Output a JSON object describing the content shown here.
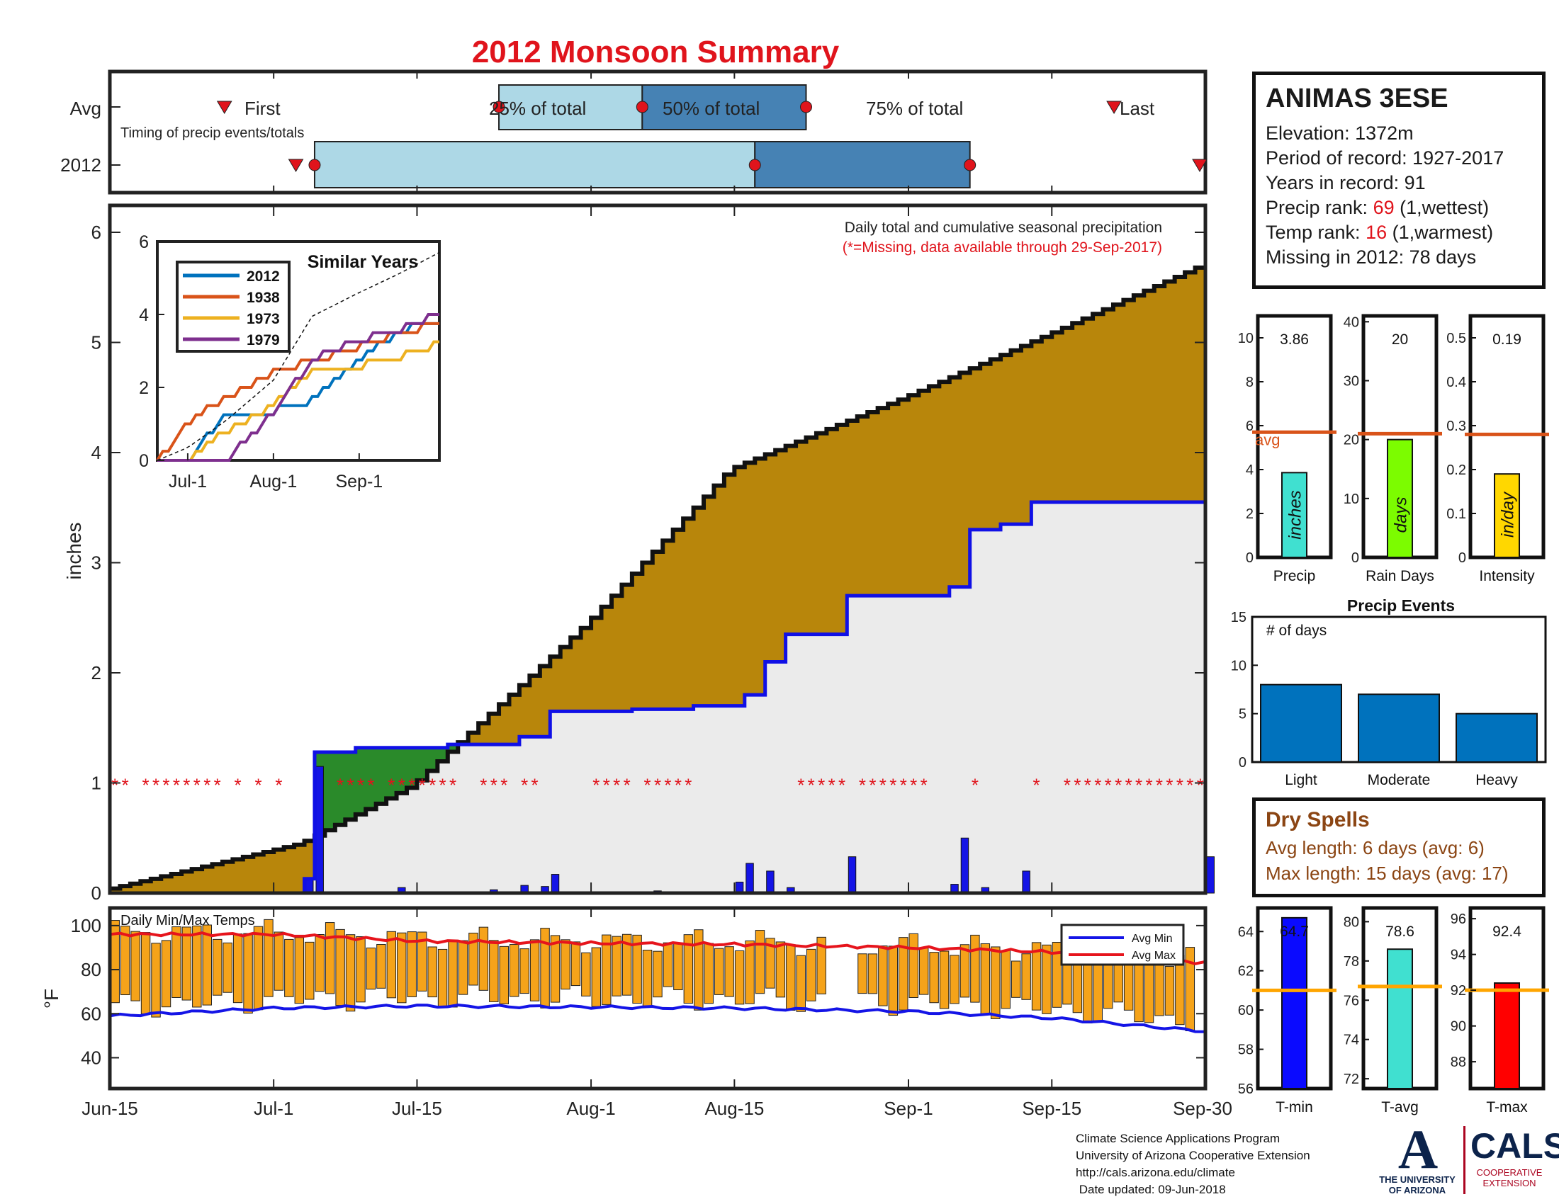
{
  "title": "2012 Monsoon Summary",
  "colors": {
    "title": "#e0141c",
    "cumulative_avg_fill": "#b8860b",
    "season_2012_fill": "#ebebeb",
    "ahead_fill": "#2a8a2a",
    "line_2012": "#1010e6",
    "daily_bar": "#1414e6",
    "missing": "#e0141c",
    "temp_bar": "#f5a31a",
    "avg_min": "#1414e6",
    "avg_max": "#e6141c"
  },
  "timing": {
    "avg_label": "Avg",
    "year_label": "2012",
    "subtitle": "Timing of precip events/totals",
    "first_label": "First",
    "last_label": "Last",
    "p25_label": "25% of total",
    "p50_label": "50% of total",
    "p75_label": "75% of total",
    "avg": {
      "first": "2012-06-30",
      "p25": "2012-07-23",
      "p50": "2012-08-06",
      "p75": "2012-08-22",
      "last": "2012-09-19"
    },
    "y2012": {
      "first": "2012-07-04",
      "p25": "2012-07-05",
      "p50": "2012-08-17",
      "p75": "2012-09-07",
      "last": "2012-09-30"
    }
  },
  "main": {
    "ylabel": "inches",
    "caption": "Daily total and cumulative seasonal precipitation",
    "missing_note": "(*=Missing, data available through 29-Sep-2017)",
    "missing_marker": "*",
    "ytick_labels": [
      "0",
      "1",
      "2",
      "3",
      "4",
      "5",
      "6"
    ],
    "xtick_labels": [
      "Jun-15",
      "Jul-1",
      "Jul-15",
      "Aug-1",
      "Aug-15",
      "Sep-1",
      "Sep-15",
      "Sep-30"
    ]
  },
  "inset": {
    "title": "Similar Years",
    "ytick_labels": [
      "0",
      "2",
      "4",
      "6"
    ],
    "xtick_labels": [
      "Jul-1",
      "Aug-1",
      "Sep-1"
    ],
    "legend": [
      "2012",
      "1938",
      "1973",
      "1979"
    ],
    "colors": [
      "#0072bd",
      "#d95319",
      "#edb120",
      "#7e2f8e"
    ]
  },
  "station": {
    "name": "ANIMAS 3ESE",
    "elevation": "Elevation: 1372m",
    "period": "Period of record: 1927-2017",
    "years": "Years in record: 91",
    "precip_rank_label": "Precip rank:",
    "precip_rank": "69",
    "precip_rank_note": "(1,wettest)",
    "temp_rank_label": "Temp rank:",
    "temp_rank": "16",
    "temp_rank_note": "(1,warmest)",
    "missing": "Missing in 2012: 78 days"
  },
  "stats": [
    {
      "name": "Precip",
      "value_text": "3.86",
      "unit": "inches",
      "ticks": [
        "0",
        "2",
        "4",
        "6",
        "8",
        "10"
      ],
      "color": "#40e0d0",
      "avg_label": "avg"
    },
    {
      "name": "Rain Days",
      "value_text": "20",
      "unit": "days",
      "ticks": [
        "0",
        "10",
        "20",
        "30",
        "40"
      ],
      "color": "#7cfc00"
    },
    {
      "name": "Intensity",
      "value_text": "0.19",
      "unit": "in/day",
      "ticks": [
        "0",
        "0.1",
        "0.2",
        "0.3",
        "0.4",
        "0.5"
      ],
      "color": "#ffd700"
    }
  ],
  "events": {
    "title": "Precip Events",
    "ylabel": "# of days",
    "ticks": [
      "0",
      "5",
      "10",
      "15"
    ],
    "categories": [
      "Light",
      "Moderate",
      "Heavy"
    ]
  },
  "dry_spells": {
    "title": "Dry Spells",
    "avg_length": "Avg length: 6 days (avg: 6)",
    "max_length": "Max length: 15 days (avg: 17)"
  },
  "temps": {
    "label": "Daily Min/Max Temps",
    "ylabel": "°F",
    "ticks": [
      "40",
      "60",
      "80",
      "100"
    ],
    "legend_min": "Avg Min",
    "legend_max": "Avg Max"
  },
  "temp_stats": [
    {
      "name": "T-min",
      "value_text": "64.7",
      "ticks": [
        "56",
        "58",
        "60",
        "62",
        "64"
      ],
      "color": "#0a0aff"
    },
    {
      "name": "T-avg",
      "value_text": "78.6",
      "ticks": [
        "72",
        "74",
        "76",
        "78",
        "80"
      ],
      "color": "#40e0d0"
    },
    {
      "name": "T-max",
      "value_text": "92.4",
      "ticks": [
        "88",
        "90",
        "92",
        "94",
        "96"
      ],
      "color": "#ff0000"
    }
  ],
  "credits": {
    "line1": "Climate Science Applications Program",
    "line2": "University of Arizona Cooperative Extension",
    "line3": "http://cals.arizona.edu/climate",
    "line4": " Date updated: 09-Jun-2018"
  },
  "logos": {
    "ua_line1": "THE UNIVERSITY",
    "ua_line2": "OF ARIZONA",
    "cals": "CALS",
    "cals_line1": "COOPERATIVE",
    "cals_line2": "EXTENSION"
  },
  "chart_data": [
    {
      "type": "area",
      "title": "Daily total and cumulative seasonal precipitation",
      "ylabel": "inches",
      "ylim": [
        0,
        6.2
      ],
      "xlim": [
        "2012-06-15",
        "2012-09-30"
      ],
      "series": [
        {
          "name": "",
          "x": [
            "2012-06-15",
            "2012-07-04",
            "2012-07-15",
            "2012-08-01",
            "2012-08-15",
            "2012-09-01",
            "2012-09-15",
            "2012-09-30"
          ],
          "values": [
            0.03,
            0.45,
            0.98,
            2.45,
            3.85,
            4.5,
            5.07,
            5.7
          ]
        },
        {
          "name": "",
          "x": [
            "2012-07-04",
            "2012-07-05",
            "2012-07-09",
            "2012-07-18",
            "2012-07-25",
            "2012-07-28",
            "2012-08-05",
            "2012-08-11",
            "2012-08-16",
            "2012-08-18",
            "2012-08-20",
            "2012-08-26",
            "2012-09-05",
            "2012-09-07",
            "2012-09-10",
            "2012-09-13",
            "2012-09-29",
            "2012-09-30"
          ],
          "values": [
            0.13,
            1.28,
            1.32,
            1.35,
            1.42,
            1.65,
            1.67,
            1.7,
            1.8,
            2.1,
            2.35,
            2.7,
            2.78,
            3.3,
            3.35,
            3.55,
            3.55,
            3.86
          ]
        },
        {
          "name": "",
          "x": [
            "2012-07-04",
            "2012-07-05",
            "2012-07-13",
            "2012-07-22",
            "2012-07-25",
            "2012-07-27",
            "2012-07-28",
            "2012-08-07",
            "2012-08-15",
            "2012-08-16",
            "2012-08-18",
            "2012-08-20",
            "2012-08-26",
            "2012-09-05",
            "2012-09-06",
            "2012-09-08",
            "2012-09-12",
            "2012-09-30"
          ],
          "values": [
            0.13,
            1.15,
            0.05,
            0.03,
            0.07,
            0.06,
            0.17,
            0.02,
            0.1,
            0.27,
            0.2,
            0.05,
            0.33,
            0.08,
            0.5,
            0.05,
            0.2,
            0.33
          ]
        }
      ]
    },
    {
      "type": "line",
      "title": "Similar Years",
      "ylim": [
        0,
        6
      ],
      "x": [
        "2012-06-20",
        "2012-07-01",
        "2012-07-15",
        "2012-08-01",
        "2012-08-15",
        "2012-09-01",
        "2012-09-15",
        "2012-09-30"
      ],
      "series": [
        {
          "name": "2012",
          "values": [
            0,
            0,
            1.3,
            1.35,
            1.65,
            2.7,
            3.55,
            3.86
          ]
        },
        {
          "name": "1938",
          "values": [
            0,
            1.0,
            1.75,
            2.4,
            2.75,
            3.1,
            3.5,
            3.75
          ]
        },
        {
          "name": "1973",
          "values": [
            0,
            0,
            0.8,
            1.5,
            2.5,
            2.6,
            2.85,
            3.2
          ]
        },
        {
          "name": "1979",
          "values": [
            0,
            0,
            0,
            1.35,
            2.75,
            3.3,
            3.55,
            4.0
          ]
        },
        {
          "name": "",
          "values": [
            0,
            0.35,
            1.1,
            2.2,
            3.95,
            4.6,
            5.1,
            5.7
          ]
        }
      ]
    },
    {
      "type": "bar",
      "categories": [
        "Precip",
        "Rain Days",
        "Intensity"
      ],
      "values": [
        3.86,
        20,
        0.19
      ],
      "avg": [
        5.7,
        21,
        0.28
      ],
      "ylim": [
        [
          0,
          11
        ],
        [
          0,
          41
        ],
        [
          0,
          0.55
        ]
      ]
    },
    {
      "type": "bar",
      "title": "Precip Events",
      "categories": [
        "Light",
        "Moderate",
        "Heavy"
      ],
      "values": [
        8,
        7,
        5
      ],
      "ylim": [
        0,
        15
      ]
    },
    {
      "type": "bar",
      "title": "Daily Min/Max Temps",
      "ylabel": "°F",
      "ylim": [
        26,
        108
      ],
      "series": [
        {
          "name": "Avg Min",
          "x": [
            "2012-06-15",
            "2012-07-01",
            "2012-07-15",
            "2012-08-01",
            "2012-08-15",
            "2012-09-01",
            "2012-09-15",
            "2012-09-30"
          ],
          "values": [
            59,
            62.5,
            63.5,
            63,
            62.5,
            61,
            58,
            52
          ]
        },
        {
          "name": "Avg Max",
          "x": [
            "2012-06-15",
            "2012-07-01",
            "2012-07-15",
            "2012-08-01",
            "2012-08-15",
            "2012-09-01",
            "2012-09-15",
            "2012-09-30"
          ],
          "values": [
            96,
            96,
            93,
            92,
            91.5,
            90,
            88,
            83
          ]
        }
      ]
    },
    {
      "type": "bar",
      "categories": [
        "T-min",
        "T-avg",
        "T-max"
      ],
      "values": [
        64.7,
        78.6,
        92.4
      ],
      "avg": [
        61,
        76.7,
        92
      ],
      "ylim": [
        [
          56,
          65.2
        ],
        [
          71.5,
          80.7
        ],
        [
          86.5,
          96.6
        ]
      ]
    }
  ]
}
